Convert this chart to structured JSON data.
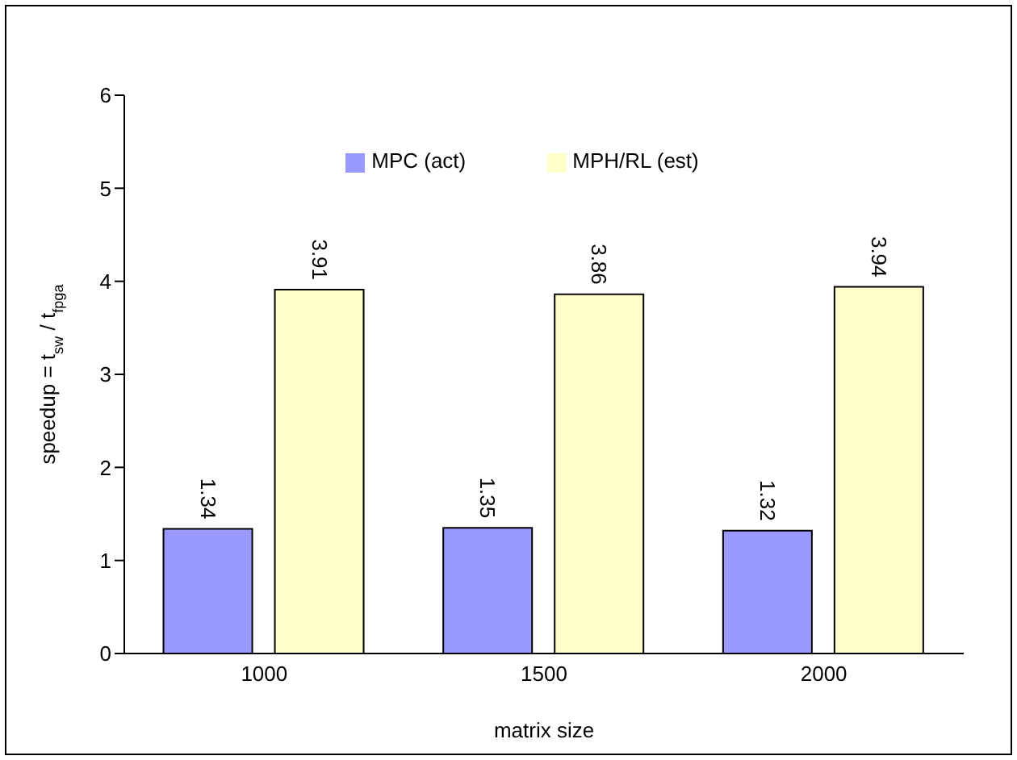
{
  "chart_data": {
    "type": "bar",
    "xlabel": "matrix size",
    "ylabel": "speedup = t$_{sw}$ / t$_{fpga}$",
    "categories": [
      "1000",
      "1500",
      "2000"
    ],
    "series": [
      {
        "name": "MPC (act)",
        "color": "#9999ff",
        "values": [
          1.34,
          1.35,
          1.32
        ]
      },
      {
        "name": "MPH/RL (est)",
        "color": "#ffffcc",
        "values": [
          3.91,
          3.86,
          3.94
        ]
      }
    ],
    "ylim": [
      0,
      6
    ],
    "yticks": [
      0,
      1,
      2,
      3,
      4,
      5,
      6
    ],
    "data_labels": true,
    "legend": "top",
    "grid": false
  }
}
